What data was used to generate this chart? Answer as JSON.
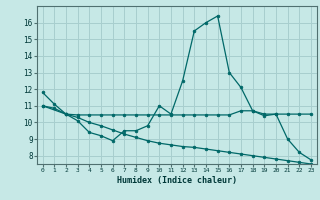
{
  "background_color": "#c6e8e6",
  "grid_color": "#a8cece",
  "line_color": "#006868",
  "xlabel": "Humidex (Indice chaleur)",
  "ylim": [
    7.5,
    17.0
  ],
  "xlim": [
    -0.5,
    23.5
  ],
  "yticks": [
    8,
    9,
    10,
    11,
    12,
    13,
    14,
    15,
    16
  ],
  "xticks": [
    0,
    1,
    2,
    3,
    4,
    5,
    6,
    7,
    8,
    9,
    10,
    11,
    12,
    13,
    14,
    15,
    16,
    17,
    18,
    19,
    20,
    21,
    22,
    23
  ],
  "line1_x": [
    0,
    1,
    2,
    3,
    4,
    5,
    6,
    7,
    8,
    9,
    10,
    11,
    12,
    13,
    14,
    15,
    16,
    17,
    18,
    19,
    20,
    21,
    22,
    23
  ],
  "line1_y": [
    11.8,
    11.1,
    10.5,
    10.1,
    9.4,
    9.2,
    8.9,
    9.5,
    9.5,
    9.8,
    11.0,
    10.5,
    12.5,
    15.5,
    16.0,
    16.4,
    13.0,
    12.1,
    10.7,
    10.4,
    10.5,
    9.0,
    8.2,
    7.75
  ],
  "line2_x": [
    0,
    2,
    3,
    4,
    5,
    6,
    7,
    8,
    9,
    10,
    11,
    12,
    13,
    14,
    15,
    16,
    17,
    18,
    19,
    20,
    21,
    22,
    23
  ],
  "line2_y": [
    11.0,
    10.5,
    10.45,
    10.45,
    10.45,
    10.45,
    10.45,
    10.45,
    10.45,
    10.45,
    10.45,
    10.45,
    10.45,
    10.45,
    10.45,
    10.45,
    10.7,
    10.7,
    10.5,
    10.5,
    10.5,
    10.5,
    10.5
  ],
  "line3_x": [
    0,
    1,
    2,
    3,
    4,
    5,
    6,
    7,
    8,
    9,
    10,
    11,
    12,
    13,
    14,
    15,
    16,
    17,
    18,
    19,
    20,
    21,
    22,
    23
  ],
  "line3_y": [
    11.0,
    10.85,
    10.5,
    10.3,
    10.0,
    9.8,
    9.55,
    9.3,
    9.1,
    8.9,
    8.75,
    8.65,
    8.55,
    8.5,
    8.4,
    8.3,
    8.2,
    8.1,
    8.0,
    7.9,
    7.8,
    7.7,
    7.6,
    7.5
  ]
}
